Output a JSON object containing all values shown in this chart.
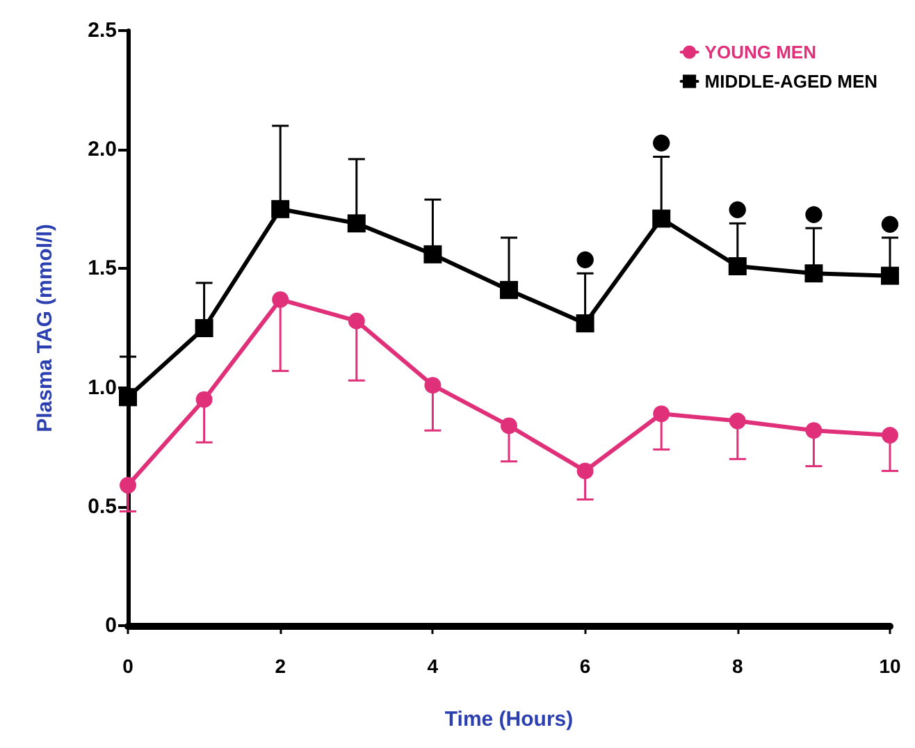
{
  "chart_data": {
    "type": "line",
    "xlabel": "Time (Hours)",
    "ylabel": "Plasma TAG (mmol/l)",
    "x": [
      0,
      1,
      2,
      3,
      4,
      5,
      6,
      7,
      8,
      9,
      10
    ],
    "series": [
      {
        "name": "YOUNG MEN",
        "color": "#e0307a",
        "marker": "circle",
        "values": [
          0.59,
          0.95,
          1.37,
          1.28,
          1.01,
          0.84,
          0.65,
          0.89,
          0.86,
          0.82,
          0.8
        ],
        "errors": [
          [
            0.48,
            0.59
          ],
          [
            0.77,
            0.95
          ],
          [
            1.07,
            1.37
          ],
          [
            1.03,
            1.28
          ],
          [
            0.82,
            1.01
          ],
          [
            0.69,
            0.84
          ],
          [
            0.53,
            0.65
          ],
          [
            0.74,
            0.89
          ],
          [
            0.7,
            0.86
          ],
          [
            0.67,
            0.82
          ],
          [
            0.65,
            0.8
          ]
        ]
      },
      {
        "name": "MIDDLE-AGED MEN",
        "color": "#000000",
        "marker": "square",
        "values": [
          0.96,
          1.25,
          1.75,
          1.69,
          1.56,
          1.41,
          1.27,
          1.71,
          1.51,
          1.48,
          1.47
        ],
        "errors": [
          [
            0.96,
            1.13
          ],
          [
            1.25,
            1.44
          ],
          [
            1.75,
            2.1
          ],
          [
            1.69,
            1.96
          ],
          [
            1.56,
            1.79
          ],
          [
            1.41,
            1.63
          ],
          [
            1.27,
            1.48
          ],
          [
            1.71,
            1.97
          ],
          [
            1.51,
            1.69
          ],
          [
            1.48,
            1.67
          ],
          [
            1.47,
            1.63
          ]
        ]
      }
    ],
    "annotations": [
      {
        "text": "●",
        "x": 6,
        "y": 1.48
      },
      {
        "text": "●",
        "x": 7,
        "y": 1.97
      },
      {
        "text": "●",
        "x": 8,
        "y": 1.69
      },
      {
        "text": "●",
        "x": 9,
        "y": 1.67
      },
      {
        "text": "●",
        "x": 10,
        "y": 1.63
      }
    ],
    "xlim": [
      0,
      10
    ],
    "xticks": [
      0,
      2,
      4,
      6,
      8,
      10
    ],
    "ylim": [
      0,
      2.5
    ],
    "yticks": [
      {
        "value": 0,
        "label": "0"
      },
      {
        "value": 0.5,
        "label": "0.5"
      },
      {
        "value": 1,
        "label": "1.0"
      },
      {
        "value": 1.5,
        "label": "1.5"
      },
      {
        "value": 2,
        "label": "2.0"
      },
      {
        "value": 2.5,
        "label": "2.5"
      }
    ],
    "legend": "top right",
    "grid": false
  }
}
